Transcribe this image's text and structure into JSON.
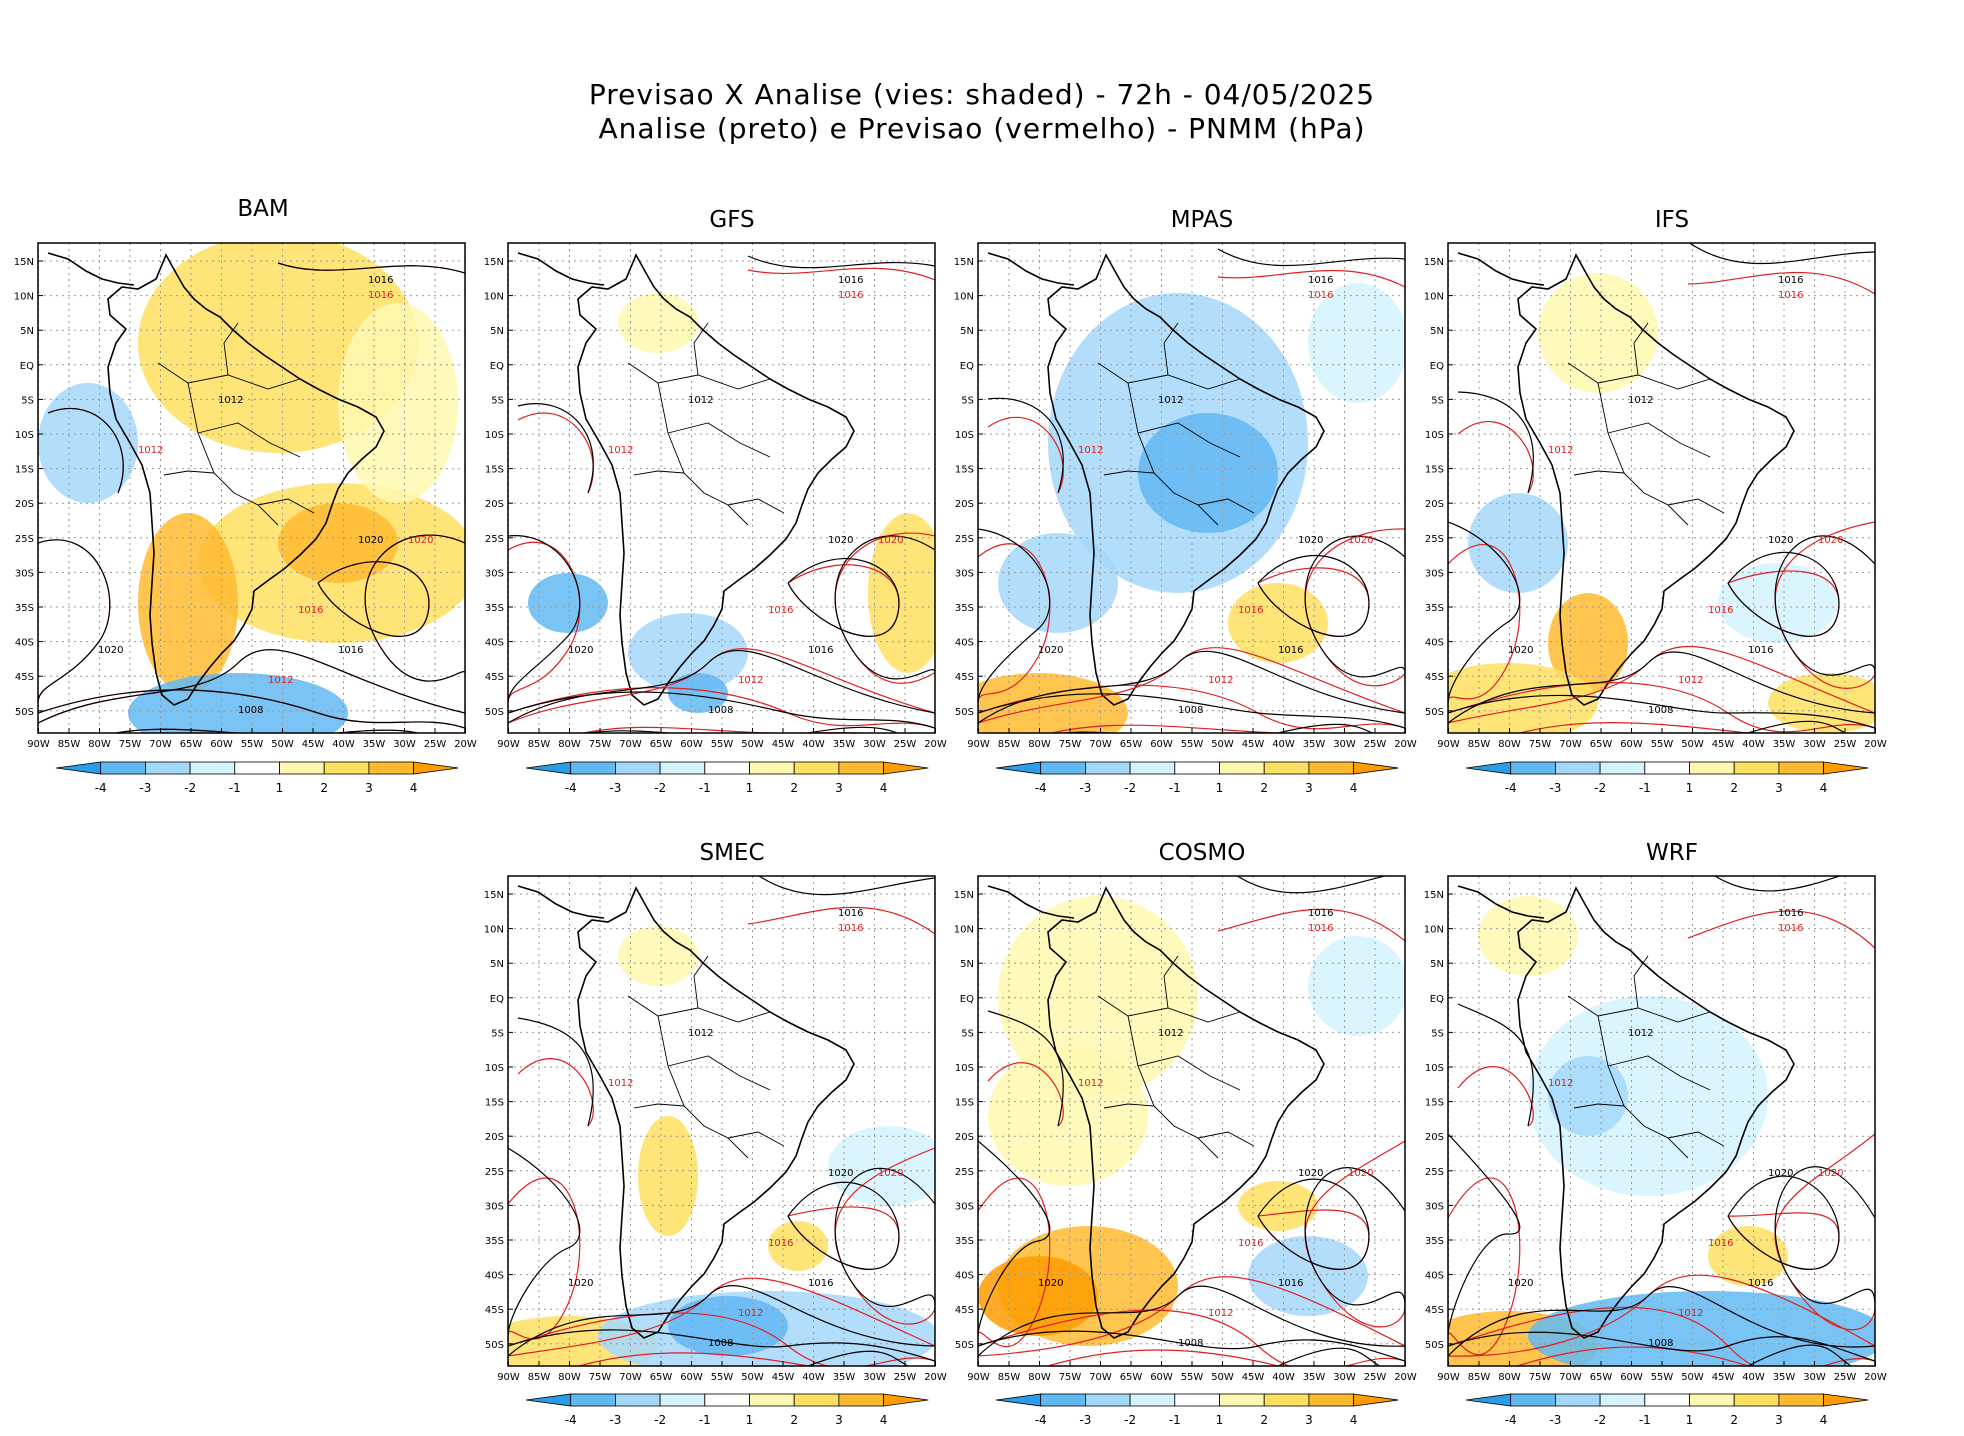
{
  "header": {
    "title_line1": "Previsao X Analise (vies: shaded) - 72h - 04/05/2025",
    "title_line2": "Analise (preto) e Previsao (vermelho) - PNMM (hPa)"
  },
  "panels": [
    {
      "name": "BAM"
    },
    {
      "name": "GFS"
    },
    {
      "name": "MPAS"
    },
    {
      "name": "IFS"
    },
    {
      "name": "SMEC"
    },
    {
      "name": "COSMO"
    },
    {
      "name": "WRF"
    }
  ],
  "axes": {
    "lat_labels": [
      "15N",
      "10N",
      "5N",
      "EQ",
      "5S",
      "10S",
      "15S",
      "20S",
      "25S",
      "30S",
      "35S",
      "40S",
      "45S",
      "50S"
    ],
    "lon_labels": [
      "90W",
      "85W",
      "80W",
      "75W",
      "70W",
      "65W",
      "60W",
      "55W",
      "50W",
      "45W",
      "40W",
      "35W",
      "30W",
      "25W",
      "20W"
    ]
  },
  "colorbar": {
    "labels": [
      "-4",
      "-3",
      "-2",
      "-1",
      "1",
      "2",
      "3",
      "4"
    ],
    "colors": [
      "#2a9de8",
      "#61b9f3",
      "#a4d8fb",
      "#d5f3ff",
      "#ffffff",
      "#fff8b0",
      "#ffe060",
      "#ffbb30",
      "#ff9c00"
    ]
  },
  "contour_colors": {
    "analysis": "#000000",
    "forecast": "#e02020"
  },
  "contour_labels": [
    "1008",
    "1012",
    "1016",
    "1020"
  ]
}
